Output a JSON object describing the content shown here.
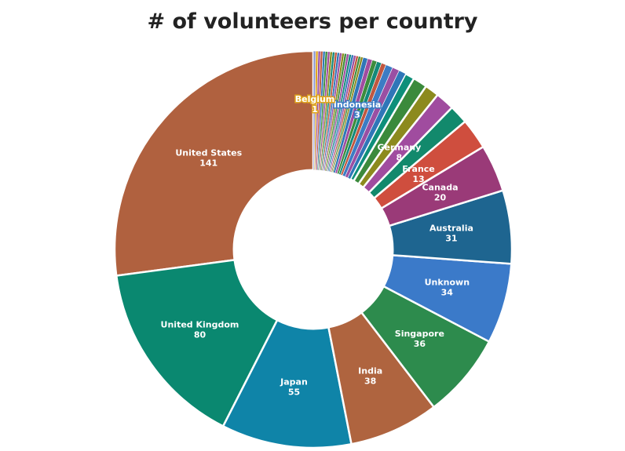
{
  "chart_data": {
    "type": "pie",
    "title": "# of volunteers per country",
    "hole": 0.4,
    "slices": [
      {
        "label": "United States",
        "value": 141,
        "color": "#B0613F",
        "show_label": true
      },
      {
        "label": "United Kingdom",
        "value": 80,
        "color": "#0A8870",
        "show_label": true
      },
      {
        "label": "Japan",
        "value": 55,
        "color": "#0F84A8",
        "show_label": true
      },
      {
        "label": "India",
        "value": 38,
        "color": "#AF643F",
        "show_label": true
      },
      {
        "label": "Singapore",
        "value": 36,
        "color": "#2D8B4D",
        "show_label": true
      },
      {
        "label": "Unknown",
        "value": 34,
        "color": "#3B7AC9",
        "show_label": true
      },
      {
        "label": "Australia",
        "value": 31,
        "color": "#1E6590",
        "show_label": true
      },
      {
        "label": "Canada",
        "value": 20,
        "color": "#9A3A78",
        "show_label": true
      },
      {
        "label": "France",
        "value": 13,
        "color": "#CF4E3E",
        "show_label": true
      },
      {
        "label": "",
        "value": 8,
        "color": "#12896C",
        "show_label": false
      },
      {
        "label": "Germany",
        "value": 8,
        "color": "#A04C9F",
        "show_label": true
      },
      {
        "label": "",
        "value": 6,
        "color": "#8C8A1E",
        "show_label": false
      },
      {
        "label": "",
        "value": 6,
        "color": "#3B8A3C",
        "show_label": false
      },
      {
        "label": "",
        "value": 4,
        "color": "#0E8F7A",
        "show_label": false
      },
      {
        "label": "",
        "value": 3,
        "color": "#2F76B8",
        "show_label": false
      },
      {
        "label": "",
        "value": 3,
        "color": "#9A4FA3",
        "show_label": false
      },
      {
        "label": "Indonesia",
        "value": 3,
        "color": "#3C7CC4",
        "show_label": true
      },
      {
        "label": "",
        "value": 2,
        "color": "#C1573F",
        "show_label": false
      },
      {
        "label": "",
        "value": 2,
        "color": "#13897A",
        "show_label": false
      },
      {
        "label": "",
        "value": 2,
        "color": "#3D8C3D",
        "show_label": false
      },
      {
        "label": "",
        "value": 2,
        "color": "#A04C9F",
        "show_label": false
      },
      {
        "label": "",
        "value": 2,
        "color": "#2F76B8",
        "show_label": false
      },
      {
        "label": "",
        "value": 1,
        "color": "#8C8A1E",
        "show_label": false
      },
      {
        "label": "",
        "value": 1,
        "color": "#3D8C3D",
        "show_label": false
      },
      {
        "label": "",
        "value": 1,
        "color": "#C1573F",
        "show_label": false
      },
      {
        "label": "",
        "value": 1,
        "color": "#9A4FA3",
        "show_label": false
      },
      {
        "label": "",
        "value": 1,
        "color": "#2F76B8",
        "show_label": false
      },
      {
        "label": "",
        "value": 1,
        "color": "#13897A",
        "show_label": false
      },
      {
        "label": "",
        "value": 1,
        "color": "#A04C9F",
        "show_label": false
      },
      {
        "label": "",
        "value": 1,
        "color": "#3D8C3D",
        "show_label": false
      },
      {
        "label": "",
        "value": 1,
        "color": "#8C8A1E",
        "show_label": false
      },
      {
        "label": "",
        "value": 1,
        "color": "#9A4FA3",
        "show_label": false
      },
      {
        "label": "",
        "value": 1,
        "color": "#2F76B8",
        "show_label": false
      },
      {
        "label": "",
        "value": 1,
        "color": "#C1573F",
        "show_label": false
      },
      {
        "label": "",
        "value": 1,
        "color": "#13897A",
        "show_label": false
      },
      {
        "label": "",
        "value": 1,
        "color": "#8C8A1E",
        "show_label": false
      },
      {
        "label": "",
        "value": 1,
        "color": "#A04C9F",
        "show_label": false
      },
      {
        "label": "",
        "value": 1,
        "color": "#3D8C3D",
        "show_label": false
      },
      {
        "label": "",
        "value": 1,
        "color": "#2F76B8",
        "show_label": false
      },
      {
        "label": "",
        "value": 1,
        "color": "#C1573F",
        "show_label": false
      },
      {
        "label": "",
        "value": 1,
        "color": "#9A4FA3",
        "show_label": false
      },
      {
        "label": "Belgium",
        "value": 1,
        "color": "#E0A51E",
        "show_label": true,
        "outlined": true
      },
      {
        "label": "",
        "value": 1,
        "color": "#8E97CF",
        "show_label": false
      }
    ]
  }
}
